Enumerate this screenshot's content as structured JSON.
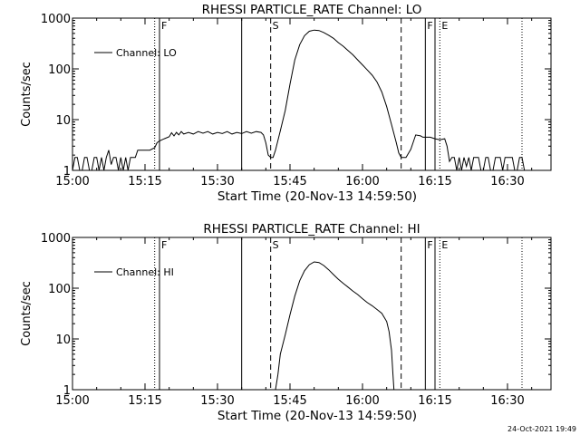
{
  "timestamp": "24-Oct-2021 19:49",
  "chart_data": [
    {
      "type": "line",
      "title": "RHESSI PARTICLE_RATE Channel: LO",
      "xlabel": "Start Time (20-Nov-13 14:59:50)",
      "ylabel": "Counts/sec",
      "ylog": true,
      "ylim": [
        1,
        1000
      ],
      "xlim": [
        "15:00",
        "16:39"
      ],
      "x_ticks": [
        "15:00",
        "15:15",
        "15:30",
        "15:45",
        "16:00",
        "16:15",
        "16:30"
      ],
      "y_ticks": [
        "1",
        "10",
        "100",
        "1000"
      ],
      "legend": {
        "position": "top-left",
        "entries": [
          "Channel: LO"
        ]
      },
      "markers": [
        {
          "time": "15:17",
          "style": "dotted",
          "label": ""
        },
        {
          "time": "15:18",
          "style": "solid",
          "label": "F"
        },
        {
          "time": "15:35",
          "style": "solid",
          "label": ""
        },
        {
          "time": "15:41",
          "style": "dashed",
          "label": "S"
        },
        {
          "time": "16:08",
          "style": "dashed",
          "label": ""
        },
        {
          "time": "16:13",
          "style": "solid",
          "label": "F"
        },
        {
          "time": "16:15",
          "style": "solid",
          "label": ""
        },
        {
          "time": "16:16",
          "style": "dotted",
          "label": "E"
        },
        {
          "time": "16:33",
          "style": "dotted",
          "label": ""
        }
      ],
      "series": [
        {
          "name": "Channel: LO",
          "segments": [
            [
              [
                "15:00",
                1
              ],
              [
                "15:00.5",
                1.8
              ],
              [
                "15:01",
                1.8
              ],
              [
                "15:01.5",
                1
              ],
              [
                "15:02",
                1
              ],
              [
                "15:02.5",
                1.8
              ],
              [
                "15:03",
                1.8
              ],
              [
                "15:03.5",
                1
              ],
              [
                "15:04",
                1
              ],
              [
                "15:04.5",
                1.8
              ],
              [
                "15:05",
                1.8
              ],
              [
                "15:05.5",
                1
              ],
              [
                "15:06",
                1.8
              ],
              [
                "15:06.5",
                1
              ],
              [
                "15:07",
                1.8
              ],
              [
                "15:07.5",
                2.5
              ],
              [
                "15:08",
                1.3
              ],
              [
                "15:08.5",
                1.8
              ],
              [
                "15:09",
                1.8
              ],
              [
                "15:09.5",
                1
              ],
              [
                "15:10",
                1.8
              ],
              [
                "15:10.5",
                1
              ],
              [
                "15:11",
                1.8
              ],
              [
                "15:11.5",
                1
              ],
              [
                "15:12",
                1.8
              ],
              [
                "15:13",
                1.8
              ],
              [
                "15:13.5",
                2.5
              ],
              [
                "15:14",
                2.5
              ],
              [
                "15:15",
                2.5
              ],
              [
                "15:16",
                2.5
              ],
              [
                "15:17",
                2.8
              ],
              [
                "15:17.5",
                3.5
              ],
              [
                "15:18",
                3.8
              ],
              [
                "15:19",
                4.2
              ],
              [
                "15:20",
                4.6
              ],
              [
                "15:20.5",
                5.5
              ],
              [
                "15:21",
                4.8
              ],
              [
                "15:21.5",
                5.6
              ],
              [
                "15:22",
                5
              ],
              [
                "15:22.5",
                5.8
              ],
              [
                "15:23",
                5.2
              ],
              [
                "15:24",
                5.6
              ],
              [
                "15:25",
                5.2
              ],
              [
                "15:26",
                5.8
              ],
              [
                "15:27",
                5.4
              ],
              [
                "15:28",
                5.8
              ],
              [
                "15:29",
                5.2
              ],
              [
                "15:30",
                5.6
              ],
              [
                "15:31",
                5.3
              ],
              [
                "15:32",
                5.8
              ],
              [
                "15:33",
                5.2
              ],
              [
                "15:34",
                5.6
              ],
              [
                "15:35",
                5.3
              ],
              [
                "15:36",
                5.8
              ],
              [
                "15:37",
                5.4
              ],
              [
                "15:38",
                5.8
              ],
              [
                "15:39",
                5.6
              ],
              [
                "15:39.5",
                5
              ],
              [
                "15:40",
                3.5
              ],
              [
                "15:40.5",
                2
              ],
              [
                "15:41",
                1.8
              ],
              [
                "15:41.5",
                1.8
              ],
              [
                "15:42",
                2.5
              ],
              [
                "15:43",
                6
              ],
              [
                "15:44",
                15
              ],
              [
                "15:45",
                50
              ],
              [
                "15:46",
                150
              ],
              [
                "15:47",
                300
              ],
              [
                "15:48",
                450
              ],
              [
                "15:49",
                550
              ],
              [
                "15:50",
                580
              ],
              [
                "15:51",
                570
              ],
              [
                "15:52",
                520
              ],
              [
                "15:53",
                460
              ],
              [
                "15:54",
                400
              ],
              [
                "15:55",
                330
              ],
              [
                "15:56",
                280
              ],
              [
                "15:57",
                230
              ],
              [
                "15:58",
                190
              ],
              [
                "15:59",
                150
              ],
              [
                "16:00",
                120
              ],
              [
                "16:01",
                95
              ],
              [
                "16:02",
                75
              ],
              [
                "16:03",
                55
              ],
              [
                "16:04",
                35
              ],
              [
                "16:05",
                18
              ],
              [
                "16:06",
                8
              ],
              [
                "16:07",
                3.5
              ],
              [
                "16:07.5",
                2.2
              ],
              [
                "16:08",
                1.8
              ],
              [
                "16:09",
                1.8
              ],
              [
                "16:10",
                2.6
              ],
              [
                "16:11",
                5
              ],
              [
                "16:12",
                4.8
              ],
              [
                "16:12.5",
                4.5
              ],
              [
                "16:13",
                4.5
              ],
              [
                "16:14",
                4.5
              ],
              [
                "16:15",
                4.2
              ],
              [
                "16:16",
                4
              ],
              [
                "16:17",
                4.2
              ],
              [
                "16:17.5",
                3
              ],
              [
                "16:18",
                1.5
              ],
              [
                "16:18.5",
                1.8
              ],
              [
                "16:19",
                1.8
              ],
              [
                "16:19.5",
                1
              ],
              [
                "16:20",
                1.8
              ],
              [
                "16:20.5",
                1
              ],
              [
                "16:21",
                1.8
              ],
              [
                "16:21.5",
                1.2
              ],
              [
                "16:22",
                1.8
              ],
              [
                "16:22.5",
                1
              ],
              [
                "16:23",
                1.8
              ],
              [
                "16:24",
                1.8
              ],
              [
                "16:24.5",
                1
              ],
              [
                "16:25",
                1
              ],
              [
                "16:25.5",
                1.8
              ],
              [
                "16:26",
                1.8
              ],
              [
                "16:26.5",
                1
              ],
              [
                "16:27",
                1
              ],
              [
                "16:27.5",
                1.8
              ],
              [
                "16:28",
                1.8
              ],
              [
                "16:28.5",
                1.8
              ],
              [
                "16:29",
                1
              ],
              [
                "16:29.5",
                1.8
              ],
              [
                "16:30",
                1.8
              ],
              [
                "16:30.5",
                1.8
              ],
              [
                "16:31",
                1.8
              ],
              [
                "16:31.5",
                1
              ],
              [
                "16:32",
                1
              ],
              [
                "16:32.5",
                1.8
              ],
              [
                "16:33",
                1.8
              ],
              [
                "16:33.5",
                1
              ]
            ]
          ]
        }
      ]
    },
    {
      "type": "line",
      "title": "RHESSI PARTICLE_RATE Channel: HI",
      "xlabel": "Start Time (20-Nov-13 14:59:50)",
      "ylabel": "Counts/sec",
      "ylog": true,
      "ylim": [
        1,
        1000
      ],
      "xlim": [
        "15:00",
        "16:39"
      ],
      "x_ticks": [
        "15:00",
        "15:15",
        "15:30",
        "15:45",
        "16:00",
        "16:15",
        "16:30"
      ],
      "y_ticks": [
        "1",
        "10",
        "100",
        "1000"
      ],
      "legend": {
        "position": "top-left",
        "entries": [
          "Channel: HI"
        ]
      },
      "markers": [
        {
          "time": "15:17",
          "style": "dotted",
          "label": ""
        },
        {
          "time": "15:18",
          "style": "solid",
          "label": "F"
        },
        {
          "time": "15:35",
          "style": "solid",
          "label": ""
        },
        {
          "time": "15:41",
          "style": "dashed",
          "label": "S"
        },
        {
          "time": "16:08",
          "style": "dashed",
          "label": ""
        },
        {
          "time": "16:13",
          "style": "solid",
          "label": "F"
        },
        {
          "time": "16:15",
          "style": "solid",
          "label": ""
        },
        {
          "time": "16:16",
          "style": "dotted",
          "label": "E"
        },
        {
          "time": "16:33",
          "style": "dotted",
          "label": ""
        }
      ],
      "series": [
        {
          "name": "Channel: HI",
          "segments": [
            [
              [
                "15:42",
                1
              ],
              [
                "15:42.5",
                2
              ],
              [
                "15:43",
                5
              ],
              [
                "15:44",
                12
              ],
              [
                "15:45",
                30
              ],
              [
                "15:46",
                70
              ],
              [
                "15:47",
                140
              ],
              [
                "15:48",
                220
              ],
              [
                "15:49",
                290
              ],
              [
                "15:50",
                330
              ],
              [
                "15:51",
                320
              ],
              [
                "15:52",
                280
              ],
              [
                "15:53",
                230
              ],
              [
                "15:54",
                185
              ],
              [
                "15:55",
                150
              ],
              [
                "15:56",
                125
              ],
              [
                "15:57",
                105
              ],
              [
                "15:58",
                88
              ],
              [
                "15:59",
                75
              ],
              [
                "16:00",
                62
              ],
              [
                "16:01",
                52
              ],
              [
                "16:02",
                45
              ],
              [
                "16:03",
                38
              ],
              [
                "16:04",
                32
              ],
              [
                "16:05",
                22
              ],
              [
                "16:05.5",
                14
              ],
              [
                "16:06",
                6
              ],
              [
                "16:06.3",
                2
              ],
              [
                "16:06.5",
                1
              ]
            ]
          ]
        }
      ]
    }
  ]
}
